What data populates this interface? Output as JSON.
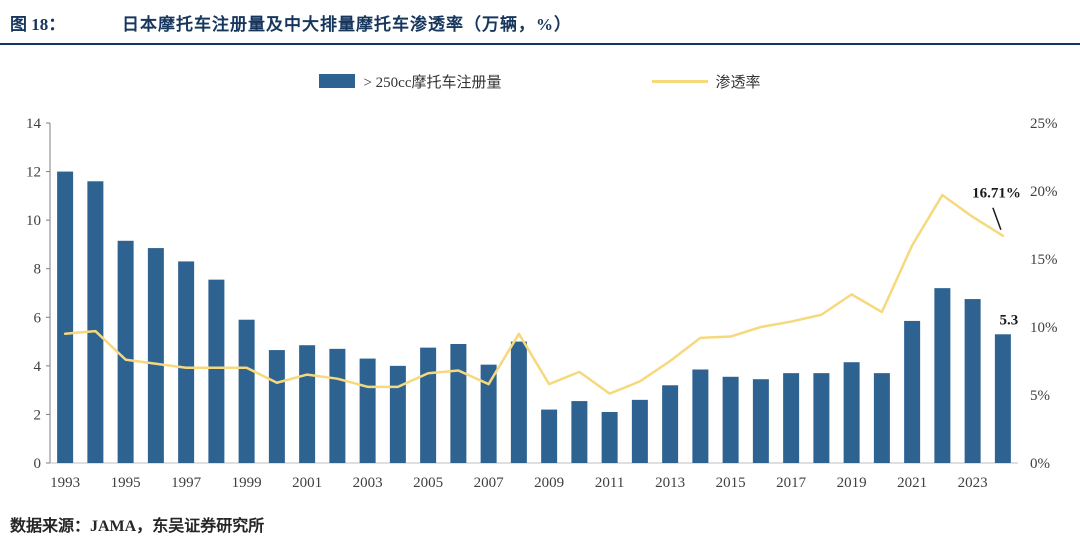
{
  "header": {
    "figure_label": "图 18：",
    "title": "日本摩托车注册量及中大排量摩托车渗透率（万辆，%）"
  },
  "legend": {
    "bars_label": "> 250cc摩托车注册量",
    "line_label": "渗透率"
  },
  "footer": {
    "source": "数据来源：JAMA，东吴证券研究所"
  },
  "colors": {
    "bar": "#2E6391",
    "line": "#F6D97C",
    "title": "#17365D",
    "axis_text": "#404040",
    "annotation": "#1a1a1a"
  },
  "chart_data": {
    "type": "bar",
    "title": "日本摩托车注册量及中大排量摩托车渗透率（万辆，%）",
    "x": [
      1993,
      1994,
      1995,
      1996,
      1997,
      1998,
      1999,
      2000,
      2001,
      2002,
      2003,
      2004,
      2005,
      2006,
      2007,
      2008,
      2009,
      2010,
      2011,
      2012,
      2013,
      2014,
      2015,
      2016,
      2017,
      2018,
      2019,
      2020,
      2021,
      2022,
      2023,
      2024
    ],
    "series": [
      {
        "name": "> 250cc摩托车注册量",
        "type": "bar",
        "axis": "left",
        "values": [
          12.0,
          11.6,
          9.15,
          8.85,
          8.3,
          7.55,
          5.9,
          4.65,
          4.85,
          4.7,
          4.3,
          4.0,
          4.75,
          4.9,
          4.05,
          5.0,
          2.2,
          2.55,
          2.1,
          2.6,
          3.2,
          3.85,
          3.55,
          3.45,
          3.7,
          3.7,
          4.15,
          3.7,
          5.85,
          7.2,
          6.75,
          5.3
        ]
      },
      {
        "name": "渗透率",
        "type": "line",
        "axis": "right",
        "values": [
          9.5,
          9.7,
          7.6,
          7.3,
          7.0,
          7.0,
          7.0,
          5.9,
          6.5,
          6.2,
          5.6,
          5.6,
          6.6,
          6.8,
          5.8,
          9.5,
          5.8,
          6.7,
          5.1,
          6.0,
          7.5,
          9.2,
          9.3,
          10.0,
          10.4,
          10.9,
          12.4,
          11.1,
          16.0,
          19.7,
          18.1,
          16.71
        ]
      }
    ],
    "left_axis": {
      "min": 0,
      "max": 14,
      "ticks": [
        0,
        2,
        4,
        6,
        8,
        10,
        12,
        14
      ]
    },
    "right_axis": {
      "min": 0,
      "max": 25,
      "ticks": [
        0,
        5,
        10,
        15,
        20,
        25
      ],
      "labels": [
        "0%",
        "5%",
        "10%",
        "15%",
        "20%",
        "25%"
      ]
    },
    "x_tick_years": [
      1993,
      1995,
      1997,
      1999,
      2001,
      2003,
      2005,
      2007,
      2009,
      2011,
      2013,
      2015,
      2017,
      2019,
      2021,
      2023
    ],
    "grid": false,
    "legend_position": "top",
    "annotations": [
      {
        "text": "16.71%",
        "year": 2024,
        "target": "line"
      },
      {
        "text": "5.3",
        "year": 2024,
        "target": "bar"
      }
    ]
  }
}
